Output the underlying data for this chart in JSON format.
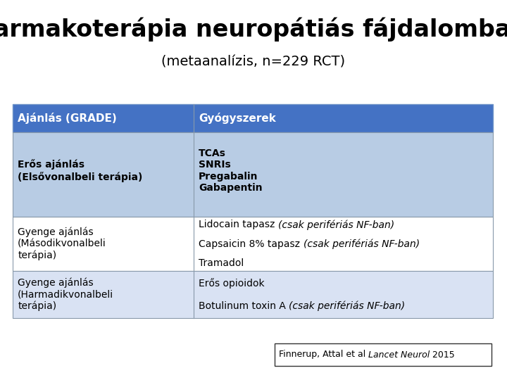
{
  "title_line1": "Farmakoterápia neuropátiás fájdalomban",
  "title_line2": "(metaanalízis, n=229 RCT)",
  "background_color": "#ffffff",
  "header_bg_color": "#4472C4",
  "header_text_color": "#ffffff",
  "row1_bg_color": "#B8CCE4",
  "row2_bg_color": "#ffffff",
  "row3_bg_color": "#D9E2F3",
  "col1_header": "Ajánlás (GRADE)",
  "col2_header": "Gyógyszerek",
  "row0_col1": "Erős ajánlás\n(Elsővonalbeli terápia)",
  "row0_col2": "TCAs\nSNRIs\nPregabalin\nGabapentin",
  "row1_col1": "Gyenge ajánlás\n(Másodikvonalbeli\nterápia)",
  "row2_col1": "Gyenge ajánlás\n(Harmadikvonalbeli\nterápia)",
  "footnote_text1": "Finnerup, Attal et al ",
  "footnote_text2": "Lancet Neurol",
  "footnote_text3": " 2015",
  "title1_fontsize": 24,
  "title2_fontsize": 14,
  "header_fontsize": 11,
  "cell_fontsize": 10,
  "footnote_fontsize": 9
}
